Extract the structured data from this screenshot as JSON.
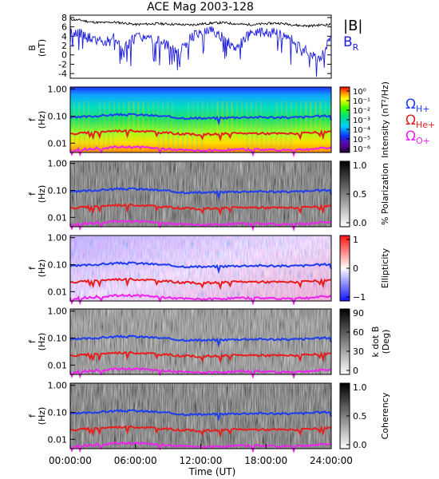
{
  "title": "ACE Mag 2003-128",
  "x_axis": {
    "label": "Time (UT)",
    "ticks": [
      "00:00:00",
      "06:00:00",
      "12:00:00",
      "18:00:00",
      "24:00:00"
    ],
    "range_hours": [
      0,
      24
    ]
  },
  "legends": {
    "b_total": "|B|",
    "b_radial_main": "B",
    "b_radial_sub": "R",
    "omega": "Ω",
    "h_sub": "H+",
    "he_sub": "He+",
    "o_sub": "O+",
    "colors": {
      "b_total": "#000000",
      "b_radial": "#1e1edc",
      "h": "#1e3cf0",
      "he": "#e61e1e",
      "o": "#ee22ee"
    }
  },
  "chart_data": [
    {
      "type": "line",
      "panel": "magnetic-field",
      "ylabel_top": "B",
      "ylabel_bottom": "(nT)",
      "ylim": [
        -5,
        8.5
      ],
      "y_ticks": [
        "8",
        "6",
        "4",
        "2",
        "0",
        "-2",
        "-4"
      ],
      "x": [
        0,
        1,
        2,
        3,
        4,
        5,
        6,
        7,
        8,
        9,
        10,
        11,
        12,
        13,
        14,
        15,
        16,
        17,
        18,
        19,
        20,
        21,
        22,
        23,
        24
      ],
      "series": [
        {
          "name": "|B|",
          "values": [
            7.6,
            7.4,
            7.0,
            6.9,
            7.0,
            6.8,
            6.5,
            6.6,
            6.7,
            6.6,
            6.5,
            6.4,
            6.6,
            6.8,
            6.9,
            6.7,
            6.5,
            6.5,
            6.7,
            6.8,
            6.6,
            6.3,
            6.2,
            6.4,
            6.5
          ]
        },
        {
          "name": "BR",
          "values": [
            5.0,
            4.5,
            3.5,
            2.5,
            4.0,
            1.5,
            4.0,
            3.5,
            3.0,
            2.0,
            1.0,
            3.5,
            5.0,
            5.5,
            4.0,
            1.5,
            3.5,
            5.0,
            4.5,
            5.0,
            4.0,
            2.0,
            0.5,
            -1.0,
            4.0
          ]
        }
      ]
    },
    {
      "type": "heatmap",
      "panel": "intensity",
      "ylabel_top": "f",
      "ylabel_bottom": "(Hz)",
      "y_ticks": [
        "1.00",
        "0.10",
        "0.01"
      ],
      "colorbar_label": "Intensity (nT²/Hz)",
      "colorbar_ticks": [
        "10⁰",
        "10⁻¹",
        "10⁻²",
        "10⁻³",
        "10⁻⁴",
        "10⁻⁵",
        "10⁻⁶"
      ]
    },
    {
      "type": "heatmap",
      "panel": "polarization",
      "ylabel_top": "f",
      "ylabel_bottom": "(Hz)",
      "y_ticks": [
        "1.00",
        "0.10",
        "0.01"
      ],
      "colorbar_label": "% Polarization",
      "colorbar_ticks": [
        "1.0",
        "0.5",
        "0.0"
      ]
    },
    {
      "type": "heatmap",
      "panel": "ellipticity",
      "ylabel_top": "f",
      "ylabel_bottom": "(Hz)",
      "y_ticks": [
        "1.00",
        "0.10",
        "0.01"
      ],
      "colorbar_label": "Ellipticity",
      "colorbar_ticks": [
        "1",
        "0",
        "−1"
      ]
    },
    {
      "type": "heatmap",
      "panel": "k-dot-b",
      "ylabel_top": "f",
      "ylabel_bottom": "(Hz)",
      "y_ticks": [
        "1.00",
        "0.10",
        "0.01"
      ],
      "colorbar_label_top": "k dot B",
      "colorbar_label_bottom": "(Deg)",
      "colorbar_ticks": [
        "90",
        "60",
        "30",
        "0"
      ]
    },
    {
      "type": "heatmap",
      "panel": "coherency",
      "ylabel_top": "f",
      "ylabel_bottom": "(Hz)",
      "y_ticks": [
        "1.00",
        "0.10",
        "0.01"
      ],
      "colorbar_label": "Coherency",
      "colorbar_ticks": [
        "1.0",
        "0.5",
        "0.0"
      ]
    }
  ]
}
